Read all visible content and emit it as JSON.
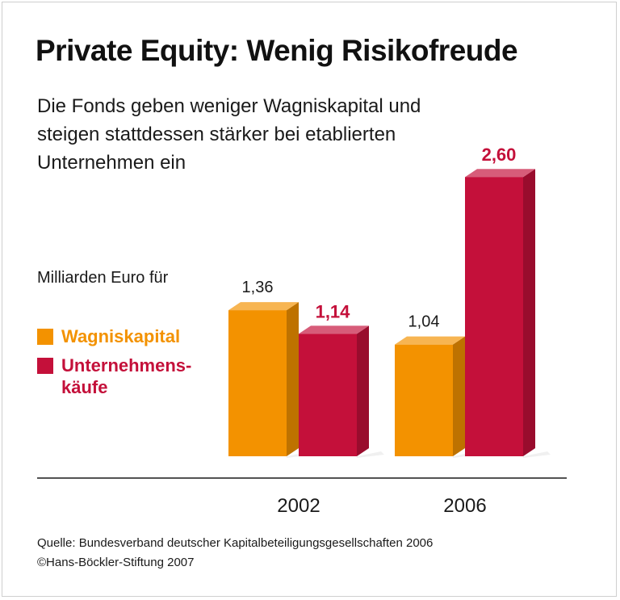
{
  "title": "Private Equity: Wenig Risikofreude",
  "subtitle": "Die Fonds geben weniger Wagniskapital und steigen stattdessen stärker bei etablierten Unternehmen ein",
  "unit_label": "Milliarden Euro für",
  "legend": [
    {
      "label": "Wagniskapital",
      "color": "#f39200"
    },
    {
      "label": "Unternehmens-\nkäufe",
      "color": "#c4103a"
    }
  ],
  "chart_data": {
    "type": "bar",
    "categories": [
      "2002",
      "2006"
    ],
    "series": [
      {
        "name": "Wagniskapital",
        "values": [
          1.36,
          1.04
        ],
        "value_labels": [
          "1,36",
          "1,04"
        ],
        "color": "#f39200"
      },
      {
        "name": "Unternehmenskäufe",
        "values": [
          1.14,
          2.6
        ],
        "value_labels": [
          "1,14",
          "2,60"
        ],
        "color": "#c4103a"
      }
    ],
    "ylim": [
      0,
      2.6
    ],
    "grid": false
  },
  "source": {
    "line1": "Quelle: Bundesverband deutscher Kapitalbeteiligungsgesellschaften 2006",
    "line2": "©Hans-Böckler-Stiftung 2007"
  }
}
